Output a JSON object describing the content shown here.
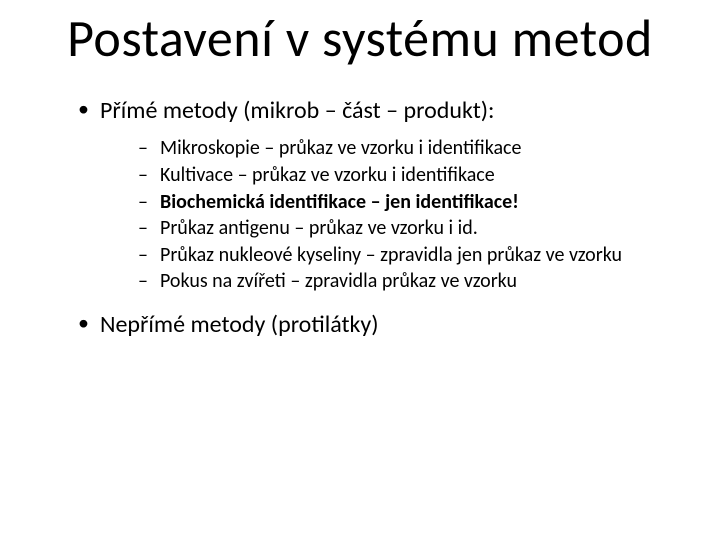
{
  "slide": {
    "title": "Postavení v systému metod",
    "title_fontsize": 52,
    "background_color": "#ffffff",
    "text_color": "#000000",
    "bullets_level1": [
      {
        "text": "Přímé metody (mikrob – část – produkt):",
        "sub": [
          {
            "text": "Mikroskopie – průkaz ve vzorku i identifikace",
            "bold": false
          },
          {
            "text": "Kultivace – průkaz ve vzorku i identifikace",
            "bold": false
          },
          {
            "text": "Biochemická identifikace – jen identifikace!",
            "bold": true
          },
          {
            "text": "Průkaz antigenu – průkaz ve vzorku i id.",
            "bold": false
          },
          {
            "text": "Průkaz nukleové kyseliny – zpravidla jen průkaz ve vzorku",
            "bold": false
          },
          {
            "text": "Pokus na zvířeti – zpravidla průkaz ve vzorku",
            "bold": false
          }
        ]
      },
      {
        "text": "Nepřímé metody (protilátky)",
        "sub": []
      }
    ],
    "level1_fontsize": 24,
    "level2_fontsize": 20,
    "bullet_marker_l1": "•",
    "bullet_marker_l2": "–"
  }
}
